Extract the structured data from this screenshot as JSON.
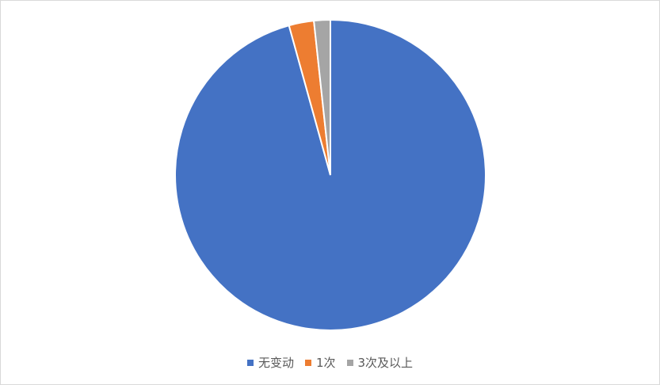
{
  "chart_data": {
    "type": "pie",
    "title": "",
    "categories": [
      "无变动",
      "1次",
      "3次及以上"
    ],
    "values": [
      95.7,
      2.6,
      1.7
    ],
    "colors": [
      "#4472C4",
      "#ED7D31",
      "#A5A5A5"
    ],
    "start_angle_deg": 0,
    "direction": "clockwise",
    "legend_position": "bottom"
  }
}
